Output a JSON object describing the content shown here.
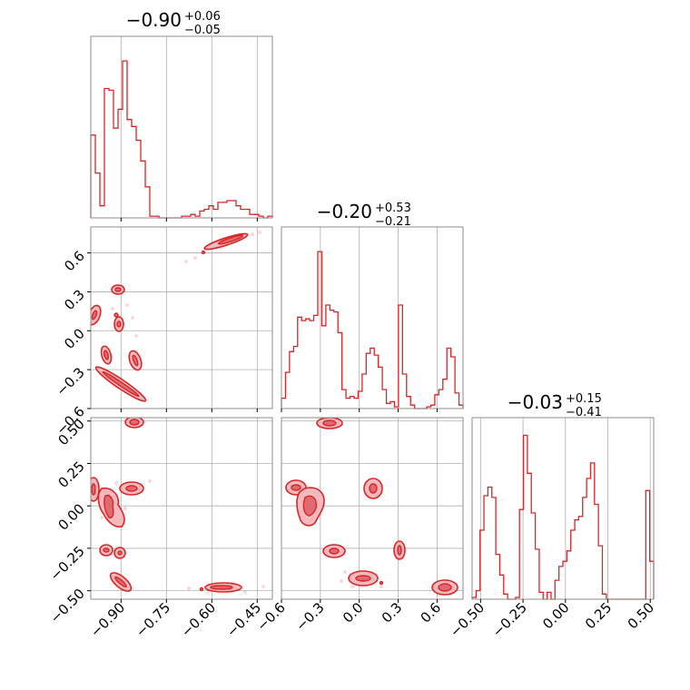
{
  "chart_data": {
    "type": "corner",
    "grid": true,
    "color": "#d62728",
    "params": [
      {
        "title": {
          "median": "−0.90",
          "plus": "+0.06",
          "minus": "−0.05"
        },
        "range": [
          -1.0,
          -0.4
        ],
        "ticks": [
          -0.9,
          -0.75,
          -0.6,
          -0.45
        ],
        "tick_labels": [
          "−0.90",
          "−0.75",
          "−0.60",
          "−0.45"
        ],
        "hist": [
          0.48,
          0.26,
          0.07,
          0.75,
          0.74,
          0.52,
          0.63,
          0.91,
          0.57,
          0.53,
          0.45,
          0.33,
          0.18,
          0.01,
          0.01,
          0.0,
          0.0,
          0.0,
          0.0,
          0.0,
          0.01,
          0.01,
          0.02,
          0.01,
          0.04,
          0.05,
          0.07,
          0.05,
          0.09,
          0.09,
          0.1,
          0.1,
          0.07,
          0.05,
          0.05,
          0.02,
          0.02,
          0.01,
          0.0,
          0.01
        ]
      },
      {
        "title": {
          "median": "−0.20",
          "plus": "+0.53",
          "minus": "−0.21"
        },
        "range": [
          -0.6,
          0.8
        ],
        "ticks": [
          -0.6,
          -0.3,
          0.0,
          0.3,
          0.6
        ],
        "tick_labels": [
          "−0.6",
          "−0.3",
          "0.0",
          "0.3",
          "0.6"
        ],
        "hist": [
          0.06,
          0.21,
          0.33,
          0.36,
          0.53,
          0.51,
          0.52,
          0.51,
          0.54,
          0.91,
          0.48,
          0.6,
          0.57,
          0.56,
          0.44,
          0.11,
          0.06,
          0.07,
          0.06,
          0.1,
          0.2,
          0.32,
          0.35,
          0.31,
          0.24,
          0.11,
          0.03,
          0.04,
          0.01,
          0.6,
          0.2,
          0.07,
          0.02,
          0.0,
          0.0,
          0.0,
          0.01,
          0.02,
          0.08,
          0.11,
          0.17,
          0.35,
          0.3,
          0.09,
          0.02
        ]
      },
      {
        "title": {
          "median": "−0.03",
          "plus": "+0.15",
          "minus": "−0.41"
        },
        "range": [
          -0.55,
          0.52
        ],
        "ticks": [
          -0.5,
          -0.25,
          0.0,
          0.25,
          0.5
        ],
        "tick_labels": [
          "−0.50",
          "−0.25",
          "0.00",
          "0.25",
          "0.50"
        ],
        "hist": [
          0.01,
          0.05,
          0.4,
          0.6,
          0.65,
          0.59,
          0.26,
          0.14,
          0.03,
          0.0,
          0.0,
          0.01,
          0.52,
          0.95,
          0.73,
          0.5,
          0.29,
          0.04,
          0.0,
          0.04,
          0.0,
          0.11,
          0.19,
          0.22,
          0.28,
          0.4,
          0.46,
          0.48,
          0.59,
          0.7,
          0.79,
          0.55,
          0.31,
          0.03,
          0.0,
          0.0,
          0.0,
          0.0,
          0.0,
          0.0,
          0.0,
          0.0,
          0.0,
          0.0,
          0.63,
          0.22
        ]
      }
    ]
  }
}
